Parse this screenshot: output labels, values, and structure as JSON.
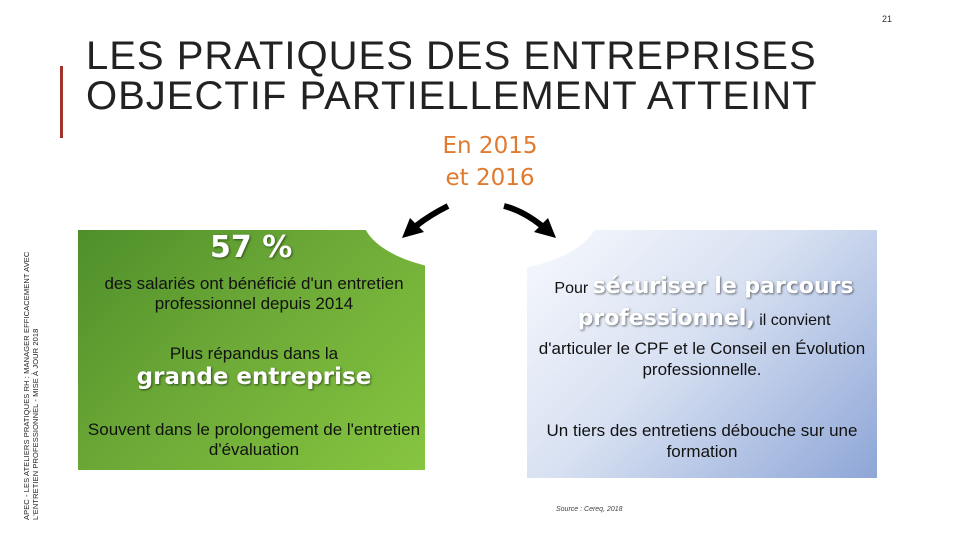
{
  "page_number": "21",
  "side_text": "APEC - LES ATELIERS PRATIQUES RH : MANAGER EFFICACEMENT AVEC L'ENTRETIEN PROFESSIONNEL - MISE À JOUR 2018",
  "title": {
    "line1": "LES PRATIQUES DES ENTREPRISES",
    "line2": "OBJECTIF PARTIELLEMENT ATTEINT"
  },
  "year_label": {
    "line1": "En 2015",
    "line2": "et 2016"
  },
  "left_box": {
    "stat": "57 %",
    "line1": "des salariés ont bénéficié d'un entretien professionnel depuis 2014",
    "line2": "Plus répandus dans la",
    "emphasis": "grande entreprise",
    "line3": "Souvent dans le prolongement de l'entretien d'évaluation"
  },
  "right_box": {
    "pour": "Pour",
    "emphasis_1": "sécuriser le parcours",
    "emphasis_2": "professionnel,",
    "il_convient": "il convient",
    "line2": "d'articuler le CPF et le Conseil en Évolution professionnelle.",
    "line3": "Un tiers des entretiens débouche sur une formation"
  },
  "source": "Source : Cereq, 2018",
  "colors": {
    "accent": "#a0342c",
    "year": "#e07a2e",
    "green_box": "#6ca937",
    "blue_box": "#8ea6d7"
  }
}
